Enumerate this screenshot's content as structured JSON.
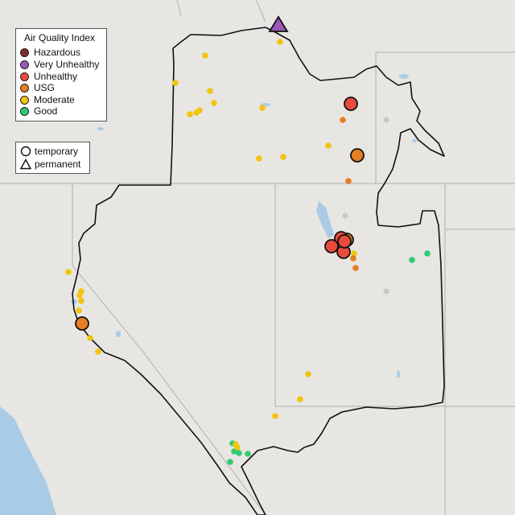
{
  "legend": {
    "aqi_title": "Air Quality Index",
    "aqi_items": [
      {
        "label": "Hazardous",
        "color": "#7e2d2d"
      },
      {
        "label": "Very Unhealthy",
        "color": "#9b59b6"
      },
      {
        "label": "Unhealthy",
        "color": "#e74c3c"
      },
      {
        "label": "USG",
        "color": "#e67e22"
      },
      {
        "label": "Moderate",
        "color": "#f1c40f"
      },
      {
        "label": "Good",
        "color": "#2ecc71"
      }
    ],
    "type_items": [
      {
        "label": "temporary",
        "icon": "circle-outline-icon"
      },
      {
        "label": "permanent",
        "icon": "triangle-outline-icon"
      }
    ]
  },
  "colors": {
    "background": "#e8e6e3",
    "state_border": "#b9b9b9",
    "region_border": "#111111",
    "water": "#a9cbe6",
    "no_data": "#c8c8c8"
  }
}
